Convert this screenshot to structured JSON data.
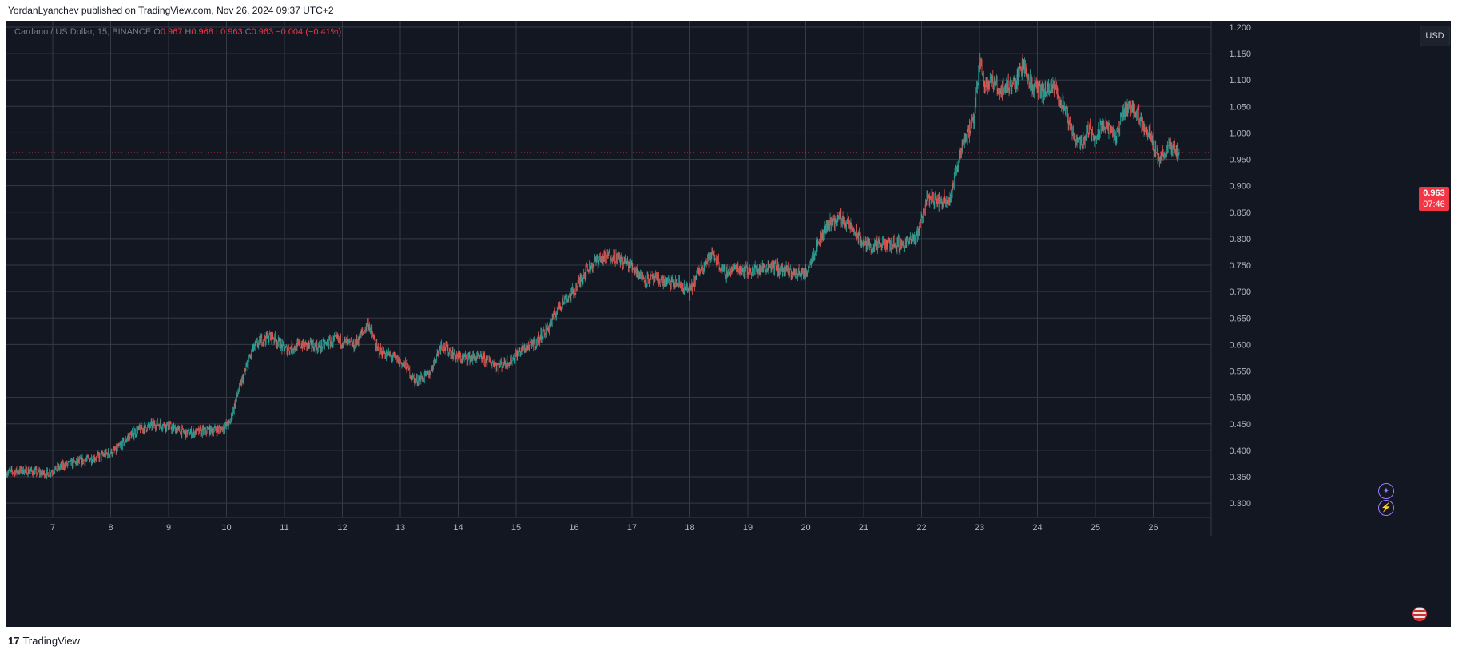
{
  "header": {
    "published": "YordanLyanchev published on TradingView.com, Nov 26, 2024 09:37 UTC+2"
  },
  "legend": {
    "symbol": "Cardano / US Dollar, 15, BINANCE",
    "o_label": "O",
    "o": "0.967",
    "h_label": "H",
    "h": "0.968",
    "l_label": "L",
    "l": "0.963",
    "c_label": "C",
    "c": "0.963",
    "change": "−0.004 (−0.41%)"
  },
  "currency_button": "USD",
  "price_tag": {
    "price": "0.963",
    "countdown": "07:46"
  },
  "footer": {
    "brand": "TradingView",
    "logo": "17"
  },
  "icons": [
    "sparkle-icon",
    "lightning-icon",
    "flag-icon"
  ],
  "colors": {
    "background": "#131722",
    "grid": "#363a45",
    "up": "#26a69a",
    "down": "#ef5350",
    "axis_text": "#b2b5be",
    "last_price": "#f23645"
  },
  "chart_data": {
    "type": "candlestick",
    "title": "",
    "xlabel": "",
    "ylabel": "",
    "x_ticks": [
      7,
      8,
      9,
      10,
      11,
      12,
      13,
      14,
      15,
      16,
      17,
      18,
      19,
      20,
      21,
      22,
      23,
      24,
      25,
      26
    ],
    "y_ticks": [
      "0.300",
      "0.350",
      "0.400",
      "0.450",
      "0.500",
      "0.550",
      "0.600",
      "0.650",
      "0.700",
      "0.750",
      "0.800",
      "0.850",
      "0.900",
      "0.950",
      "1.000",
      "1.050",
      "1.100",
      "1.150",
      "1.200"
    ],
    "xlim": [
      6.2,
      27.0
    ],
    "ylim": [
      0.273,
      1.212
    ],
    "last_price": 0.963,
    "grid": true,
    "series": [
      {
        "x": [
          6.2,
          6.5,
          6.9,
          7.2,
          7.5,
          7.8,
          8.1,
          8.3,
          8.5,
          8.8,
          9.0,
          9.3,
          9.6,
          9.9,
          10.05,
          10.2,
          10.45,
          10.6,
          10.8,
          11.0,
          11.3,
          11.6,
          11.9,
          12.2,
          12.45,
          12.6,
          12.9,
          13.1,
          13.25,
          13.5,
          13.7,
          14.0,
          14.3,
          14.5,
          14.7,
          14.9,
          15.1,
          15.3,
          15.55,
          15.75,
          16.0,
          16.2,
          16.4,
          16.65,
          16.8,
          17.0,
          17.2,
          17.5,
          17.8,
          18.0,
          18.2,
          18.4,
          18.6,
          18.8,
          19.0,
          19.2,
          19.4,
          19.6,
          19.8,
          20.0,
          20.2,
          20.4,
          20.6,
          20.8,
          21.0,
          21.2,
          21.4,
          21.7,
          21.9,
          22.1,
          22.3,
          22.5,
          22.7,
          22.9,
          23.0,
          23.1,
          23.2,
          23.35,
          23.5,
          23.65,
          23.75,
          23.9,
          24.1,
          24.3,
          24.45,
          24.6,
          24.75,
          24.9,
          25.0,
          25.15,
          25.35,
          25.5,
          25.65,
          25.8,
          25.95,
          26.1,
          26.3,
          26.45
        ],
        "close": [
          0.358,
          0.362,
          0.356,
          0.372,
          0.38,
          0.388,
          0.4,
          0.425,
          0.44,
          0.45,
          0.445,
          0.432,
          0.436,
          0.44,
          0.45,
          0.51,
          0.59,
          0.61,
          0.615,
          0.59,
          0.6,
          0.595,
          0.61,
          0.598,
          0.64,
          0.59,
          0.575,
          0.56,
          0.53,
          0.545,
          0.6,
          0.575,
          0.575,
          0.57,
          0.56,
          0.57,
          0.59,
          0.6,
          0.63,
          0.675,
          0.7,
          0.74,
          0.76,
          0.77,
          0.76,
          0.748,
          0.725,
          0.72,
          0.715,
          0.7,
          0.748,
          0.77,
          0.735,
          0.745,
          0.74,
          0.742,
          0.75,
          0.74,
          0.735,
          0.735,
          0.79,
          0.83,
          0.84,
          0.82,
          0.79,
          0.785,
          0.79,
          0.79,
          0.8,
          0.88,
          0.87,
          0.88,
          0.98,
          1.02,
          1.14,
          1.09,
          1.1,
          1.08,
          1.09,
          1.1,
          1.13,
          1.09,
          1.075,
          1.085,
          1.05,
          1.0,
          0.98,
          1.01,
          0.99,
          1.02,
          0.99,
          1.045,
          1.05,
          1.02,
          1.0,
          0.95,
          0.975,
          0.963
        ]
      }
    ]
  }
}
